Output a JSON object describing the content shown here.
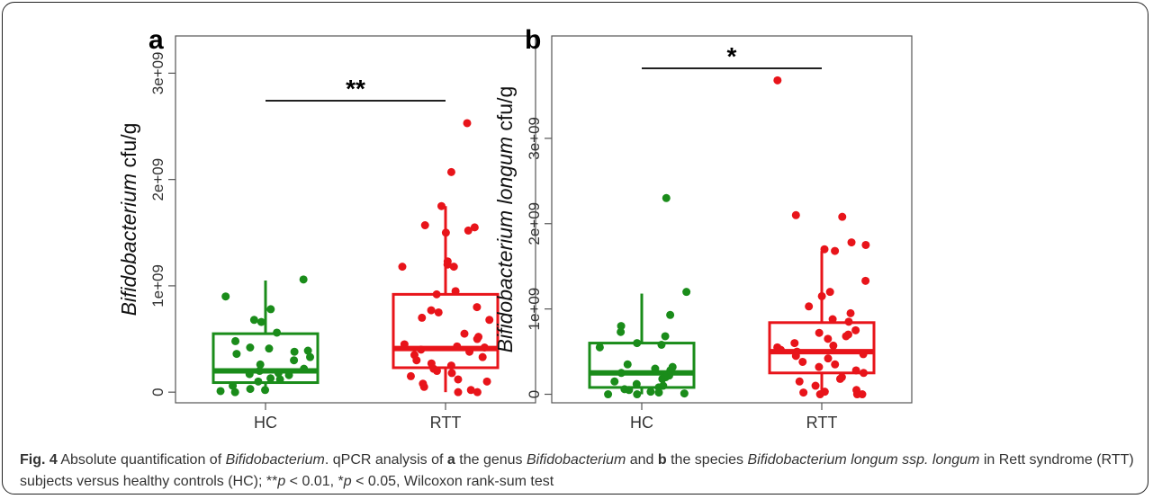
{
  "chart_data": [
    {
      "type": "box",
      "panel_label": "a",
      "ylabel_italic": "Bifidobacterium",
      "ylabel_rest": " cfu/g",
      "categories": [
        "HC",
        "RTT"
      ],
      "ylim": [
        -100000000.0,
        3350000000.0
      ],
      "yticks": [
        0,
        1000000000.0,
        2000000000.0,
        3000000000.0
      ],
      "ytick_labels": [
        "0",
        "1e+09",
        "2e+09",
        "3e+09"
      ],
      "significance": "**",
      "boxes": [
        {
          "category": "HC",
          "min": 0,
          "q1": 90000000.0,
          "median": 200000000.0,
          "q3": 550000000.0,
          "max": 1050000000.0
        },
        {
          "category": "RTT",
          "min": 0,
          "q1": 230000000.0,
          "median": 410000000.0,
          "q3": 920000000.0,
          "max": 1750000000.0
        }
      ],
      "points": [
        {
          "category": "HC",
          "y": [
            1060000000.0,
            900000000.0,
            780000000.0,
            680000000.0,
            660000000.0,
            560000000.0,
            480000000.0,
            420000000.0,
            410000000.0,
            390000000.0,
            380000000.0,
            360000000.0,
            330000000.0,
            300000000.0,
            260000000.0,
            220000000.0,
            200000000.0,
            180000000.0,
            170000000.0,
            160000000.0,
            130000000.0,
            120000000.0,
            100000000.0,
            60000000.0,
            30000000.0,
            20000000.0,
            10000000.0,
            0.0
          ]
        },
        {
          "category": "RTT",
          "y": [
            2530000000.0,
            2070000000.0,
            1750000000.0,
            1570000000.0,
            1550000000.0,
            1520000000.0,
            1500000000.0,
            1230000000.0,
            1200000000.0,
            1180000000.0,
            1180000000.0,
            950000000.0,
            920000000.0,
            800000000.0,
            770000000.0,
            750000000.0,
            700000000.0,
            680000000.0,
            550000000.0,
            520000000.0,
            500000000.0,
            450000000.0,
            430000000.0,
            420000000.0,
            400000000.0,
            380000000.0,
            350000000.0,
            330000000.0,
            300000000.0,
            270000000.0,
            250000000.0,
            220000000.0,
            200000000.0,
            180000000.0,
            150000000.0,
            120000000.0,
            100000000.0,
            80000000.0,
            50000000.0,
            20000000.0,
            0.0,
            0.0
          ]
        }
      ]
    },
    {
      "type": "box",
      "panel_label": "b",
      "ylabel_italic": "Bifidobacterium longum",
      "ylabel_rest": " cfu/g",
      "categories": [
        "HC",
        "RTT"
      ],
      "ylim": [
        -100000000.0,
        4200000000.0
      ],
      "yticks": [
        0,
        1000000000.0,
        2000000000.0,
        3000000000.0
      ],
      "ytick_labels": [
        "0",
        "1e+09",
        "2e+09",
        "3e+09"
      ],
      "significance": "*",
      "boxes": [
        {
          "category": "HC",
          "min": 0,
          "q1": 80000000.0,
          "median": 250000000.0,
          "q3": 600000000.0,
          "max": 1180000000.0
        },
        {
          "category": "RTT",
          "min": 0,
          "q1": 250000000.0,
          "median": 500000000.0,
          "q3": 840000000.0,
          "max": 1680000000.0
        }
      ],
      "points": [
        {
          "category": "HC",
          "y": [
            2300000000.0,
            1200000000.0,
            930000000.0,
            800000000.0,
            730000000.0,
            680000000.0,
            600000000.0,
            580000000.0,
            550000000.0,
            350000000.0,
            320000000.0,
            300000000.0,
            280000000.0,
            250000000.0,
            220000000.0,
            200000000.0,
            180000000.0,
            150000000.0,
            120000000.0,
            100000000.0,
            80000000.0,
            60000000.0,
            50000000.0,
            30000000.0,
            20000000.0,
            10000000.0,
            0.0,
            0.0
          ]
        },
        {
          "category": "RTT",
          "y": [
            3680000000.0,
            2100000000.0,
            2080000000.0,
            1780000000.0,
            1750000000.0,
            1700000000.0,
            1680000000.0,
            1330000000.0,
            1200000000.0,
            1150000000.0,
            1030000000.0,
            950000000.0,
            880000000.0,
            850000000.0,
            750000000.0,
            720000000.0,
            700000000.0,
            680000000.0,
            650000000.0,
            600000000.0,
            570000000.0,
            550000000.0,
            520000000.0,
            500000000.0,
            470000000.0,
            450000000.0,
            420000000.0,
            380000000.0,
            350000000.0,
            320000000.0,
            280000000.0,
            250000000.0,
            200000000.0,
            180000000.0,
            150000000.0,
            100000000.0,
            50000000.0,
            30000000.0,
            20000000.0,
            0.0,
            0.0,
            0.0
          ]
        }
      ]
    }
  ],
  "colors": {
    "HC": "#1a8c1a",
    "RTT": "#e8141a"
  },
  "caption": {
    "fig_label": "Fig. 4",
    "text_1": " Absolute quantification of ",
    "text_1_italic": "Bifidobacterium",
    "text_2": ". qPCR analysis of ",
    "label_a": "a",
    "text_3": " the genus ",
    "text_3_italic": "Bifidobacterium",
    "text_4": " and ",
    "label_b": "b",
    "text_5": " the species ",
    "text_5_italic": "Bifidobacterium longum ssp. longum",
    "text_6": " in Rett syndrome (RTT) subjects versus healthy controls (HC); **",
    "p_italic_1": "p",
    "text_7": " < 0.01, *",
    "p_italic_2": "p",
    "text_8": " < 0.05, Wilcoxon rank-sum test"
  }
}
